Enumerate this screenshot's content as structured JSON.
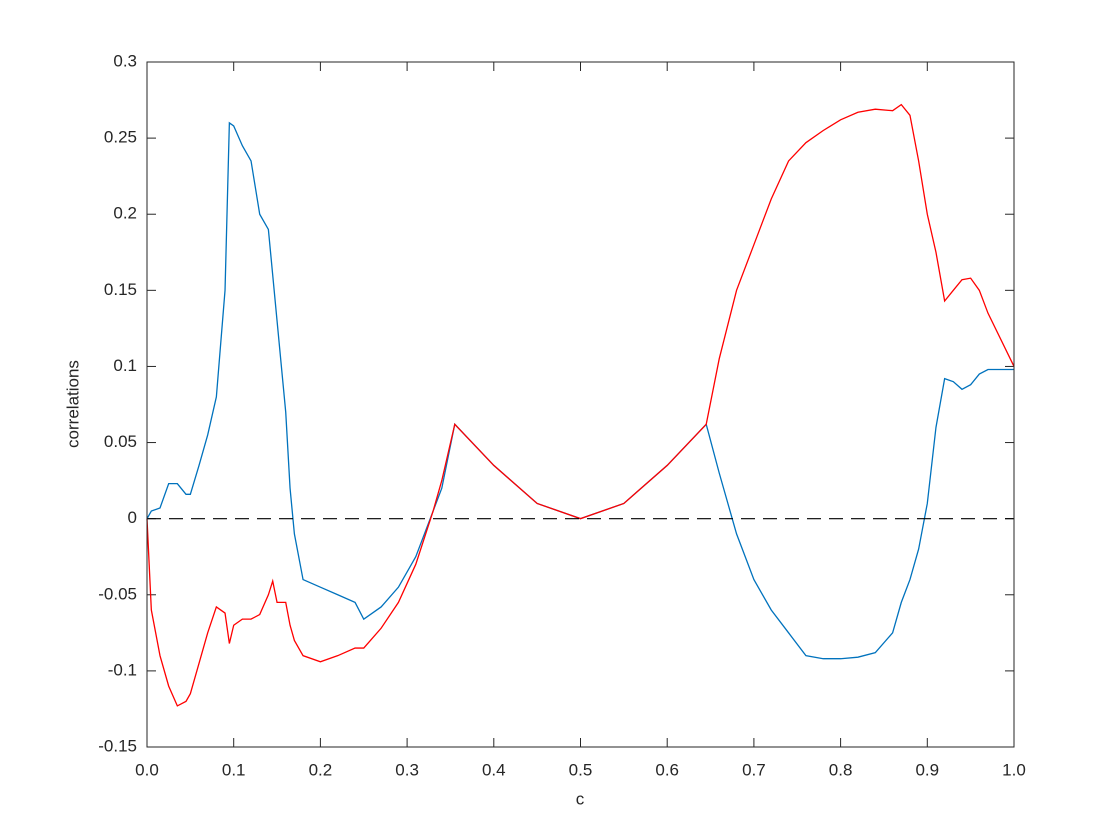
{
  "chart_data": {
    "type": "line",
    "xlabel": "c",
    "ylabel": "correlations",
    "x": [
      0,
      0.005,
      0.015,
      0.025,
      0.035,
      0.045,
      0.05,
      0.06,
      0.07,
      0.08,
      0.09,
      0.095,
      0.1,
      0.11,
      0.12,
      0.13,
      0.14,
      0.145,
      0.15,
      0.16,
      0.165,
      0.17,
      0.18,
      0.2,
      0.22,
      0.24,
      0.25,
      0.27,
      0.29,
      0.31,
      0.33,
      0.34,
      0.355,
      0.4,
      0.45,
      0.5,
      0.55,
      0.6,
      0.645,
      0.66,
      0.68,
      0.7,
      0.72,
      0.74,
      0.76,
      0.78,
      0.8,
      0.82,
      0.84,
      0.86,
      0.87,
      0.88,
      0.89,
      0.9,
      0.91,
      0.92,
      0.93,
      0.94,
      0.95,
      0.96,
      0.97,
      1.0
    ],
    "series": [
      {
        "color": "#0072bd",
        "values": [
          0,
          0.005,
          0.007,
          0.023,
          0.023,
          0.016,
          0.016,
          0.035,
          0.055,
          0.08,
          0.15,
          0.26,
          0.258,
          0.245,
          0.235,
          0.2,
          0.19,
          0.16,
          0.13,
          0.07,
          0.02,
          -0.01,
          -0.04,
          -0.045,
          -0.05,
          -0.055,
          -0.066,
          -0.058,
          -0.045,
          -0.025,
          0.005,
          0.02,
          0.062,
          0.035,
          0.01,
          0,
          0.01,
          0.035,
          0.062,
          0.03,
          -0.01,
          -0.04,
          -0.06,
          -0.075,
          -0.09,
          -0.092,
          -0.092,
          -0.091,
          -0.088,
          -0.075,
          -0.055,
          -0.04,
          -0.02,
          0.01,
          0.06,
          0.092,
          0.09,
          0.085,
          0.088,
          0.095,
          0.098,
          0.098
        ]
      },
      {
        "color": "#ff0000",
        "values": [
          0,
          -0.06,
          -0.09,
          -0.11,
          -0.123,
          -0.12,
          -0.115,
          -0.095,
          -0.075,
          -0.058,
          -0.062,
          -0.082,
          -0.07,
          -0.066,
          -0.066,
          -0.063,
          -0.05,
          -0.041,
          -0.055,
          -0.055,
          -0.07,
          -0.08,
          -0.09,
          -0.094,
          -0.09,
          -0.085,
          -0.085,
          -0.072,
          -0.055,
          -0.03,
          0.005,
          0.025,
          0.062,
          0.035,
          0.01,
          0,
          0.01,
          0.035,
          0.062,
          0.105,
          0.15,
          0.18,
          0.21,
          0.235,
          0.247,
          0.255,
          0.262,
          0.267,
          0.269,
          0.268,
          0.272,
          0.265,
          0.235,
          0.2,
          0.175,
          0.143,
          0.15,
          0.157,
          0.158,
          0.15,
          0.135,
          0.1
        ]
      }
    ],
    "reference_line": 0,
    "xlim": [
      0,
      1
    ],
    "xticks": [
      {
        "value": 0,
        "label": "0.0"
      },
      0.1,
      0.2,
      0.3,
      0.4,
      0.5,
      0.6,
      0.7,
      0.8,
      0.9,
      {
        "value": 1,
        "label": "1.0"
      }
    ],
    "ylim": [
      -0.15,
      0.3
    ],
    "yticks": [
      -0.15,
      -0.1,
      -0.05,
      0,
      0.05,
      0.1,
      0.15,
      0.2,
      0.25,
      0.3
    ]
  }
}
